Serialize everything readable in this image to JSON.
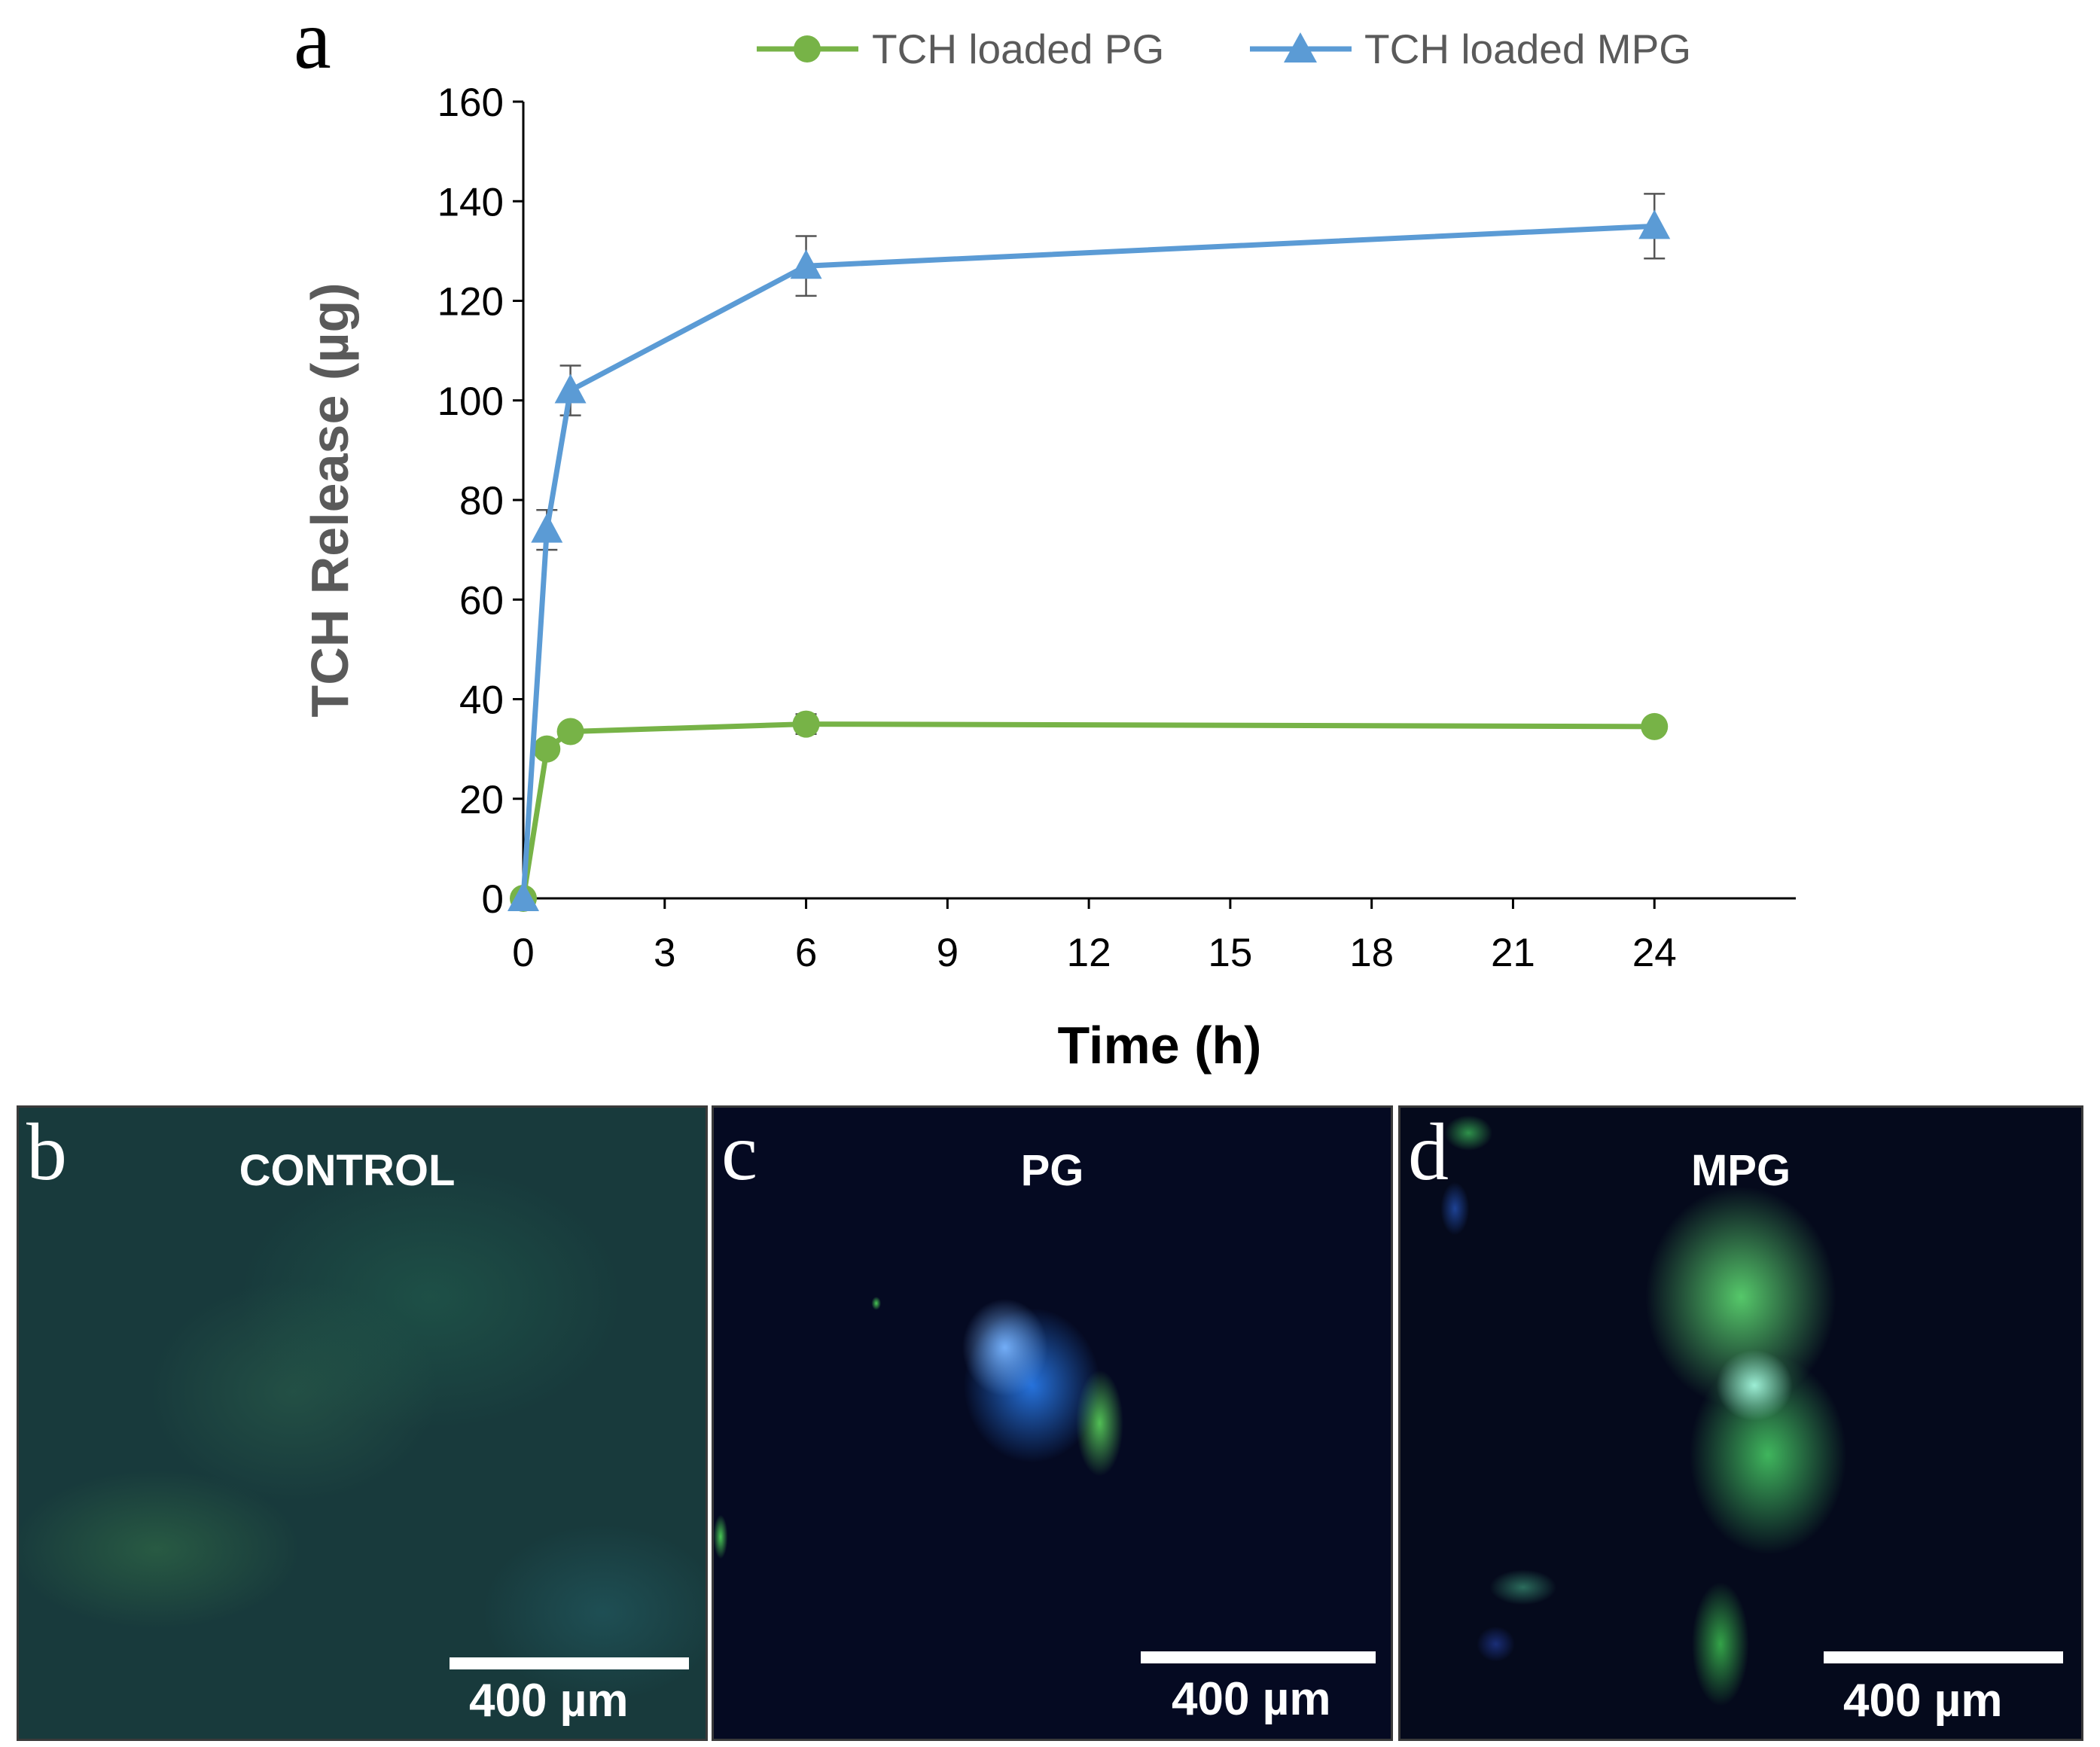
{
  "chart_data": {
    "type": "line",
    "panel_label": "a",
    "xlabel": "Time (h)",
    "ylabel": "TCH Release (µg)",
    "xlim": [
      0,
      27
    ],
    "ylim": [
      0,
      160
    ],
    "xticks": [
      0,
      3,
      6,
      9,
      12,
      15,
      18,
      21,
      24
    ],
    "yticks": [
      0,
      20,
      40,
      60,
      80,
      100,
      120,
      140,
      160
    ],
    "legend_position": "top",
    "grid": false,
    "series": [
      {
        "name": "TCH loaded PG",
        "color": "#77b347",
        "marker": "circle",
        "x": [
          0,
          0.5,
          1,
          6,
          24
        ],
        "y": [
          0,
          30,
          33.5,
          35,
          34.5
        ],
        "error": [
          0,
          1.5,
          1.5,
          2,
          1.5
        ]
      },
      {
        "name": "TCH loaded MPG",
        "color": "#5b9bd5",
        "marker": "triangle",
        "x": [
          0,
          0.5,
          1,
          6,
          24
        ],
        "y": [
          0,
          74,
          102,
          127,
          135
        ],
        "error": [
          0,
          4,
          5,
          6,
          6.5
        ]
      }
    ]
  },
  "images": [
    {
      "letter": "b",
      "title": "CONTROL",
      "scale": "400 µm"
    },
    {
      "letter": "c",
      "title": "PG",
      "scale": "400 µm"
    },
    {
      "letter": "d",
      "title": "MPG",
      "scale": "400 µm"
    }
  ]
}
